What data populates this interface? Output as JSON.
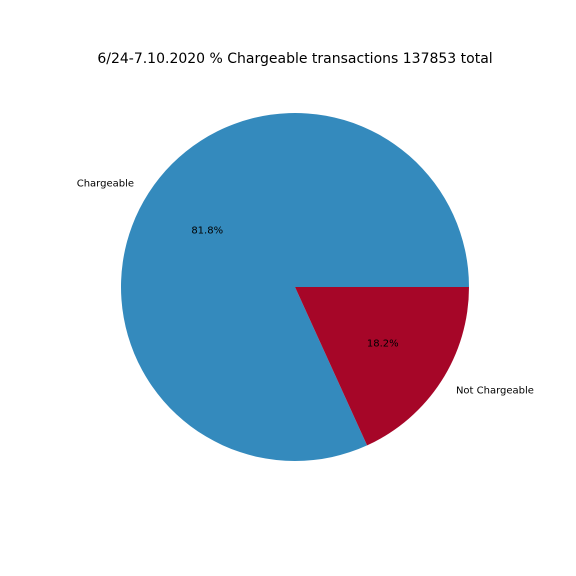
{
  "chart_data": {
    "type": "pie",
    "title": "6/24-7.10.2020 % Chargeable transactions 137853 total",
    "categories": [
      "Chargeable",
      "Not Chargeable"
    ],
    "values": [
      81.8,
      18.2
    ],
    "value_labels": [
      "81.8%",
      "18.2%"
    ],
    "colors": [
      "#348abd",
      "#a60628"
    ],
    "start_angle_deg": 0,
    "direction": "counterclockwise",
    "legend": "none"
  }
}
